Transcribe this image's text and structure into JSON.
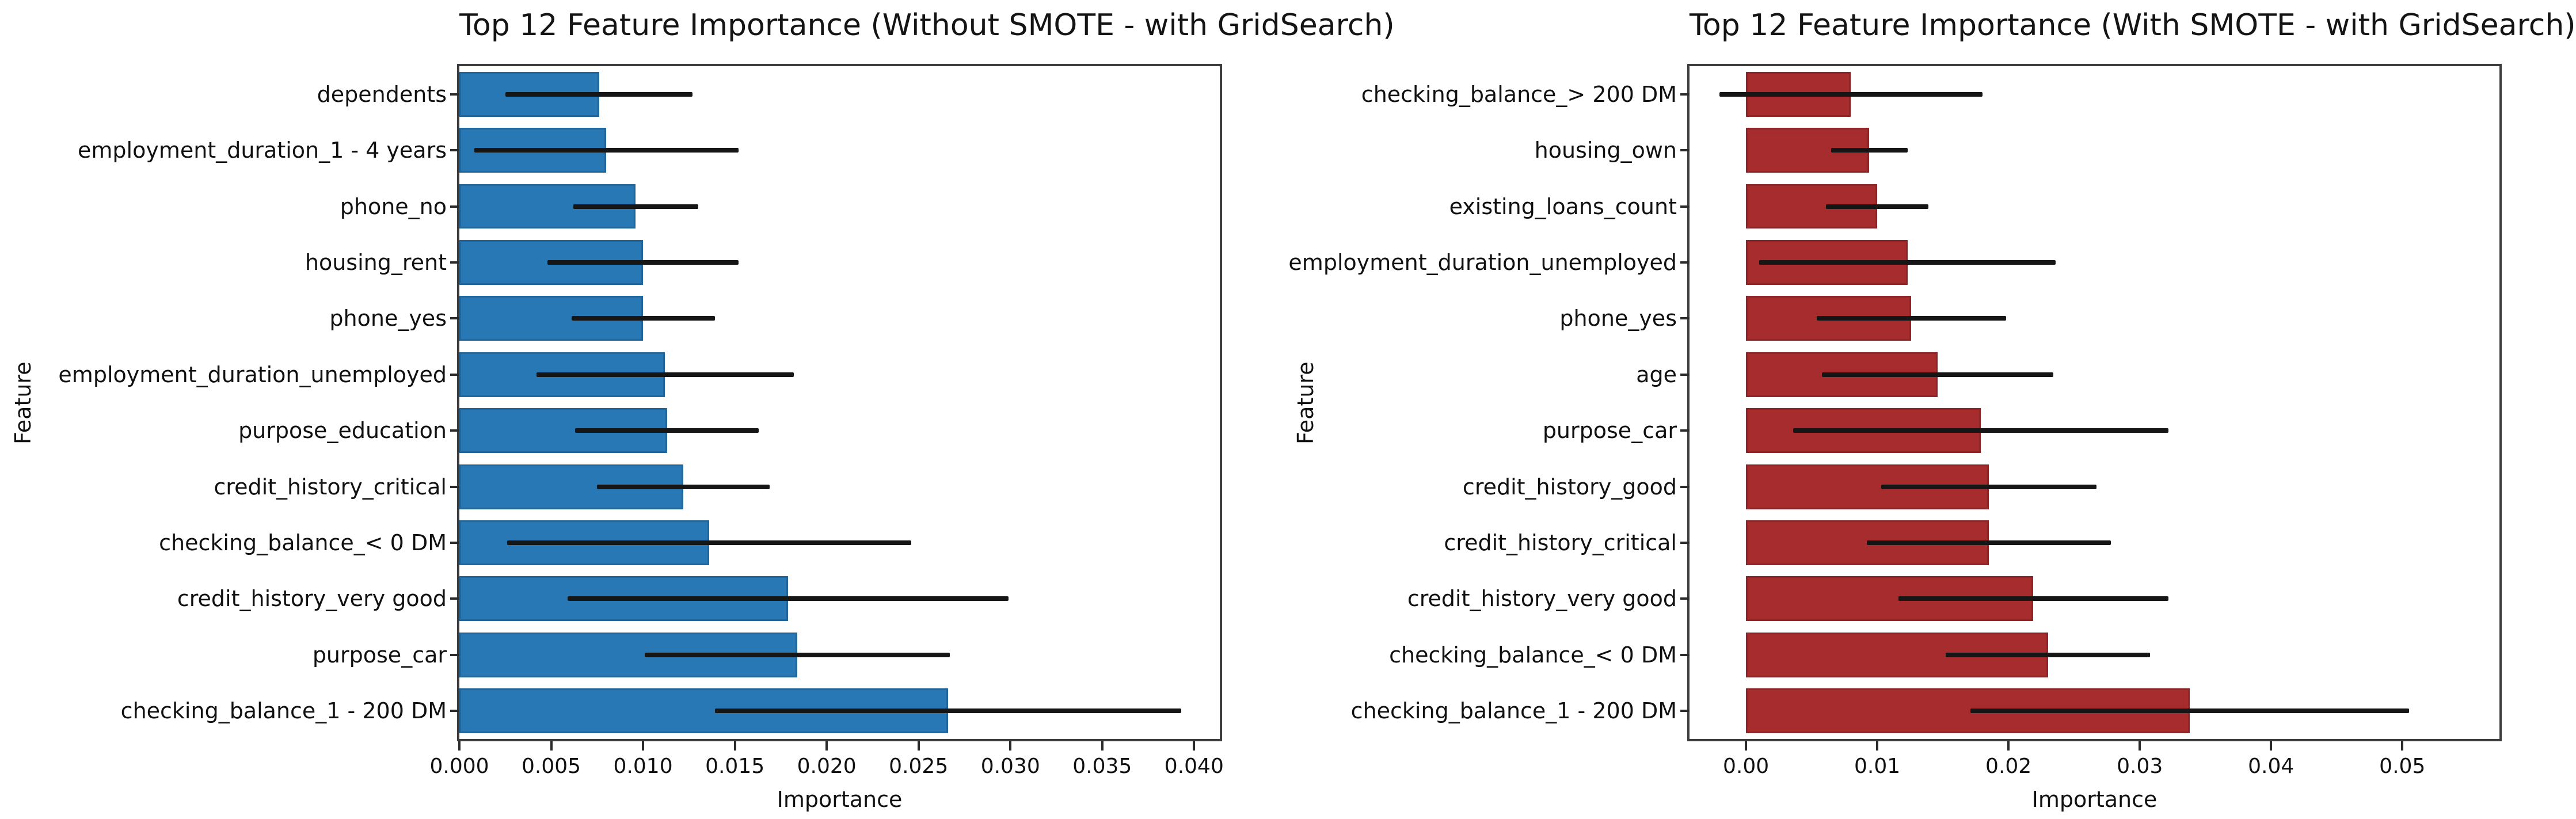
{
  "figure": {
    "background": "#ffffff",
    "text_color": "#111111",
    "spine_color": "#3d3d3d"
  },
  "chart_data": [
    {
      "type": "bar",
      "orientation": "horizontal",
      "title": "Top 12 Feature Importance (Without SMOTE - with GridSearch)",
      "xlabel": "Importance",
      "ylabel": "Feature",
      "bar_color": "#2878b5",
      "error_color": "#161616",
      "grid": false,
      "legend": null,
      "xlim": [
        0.0,
        0.0414
      ],
      "categories": [
        "dependents",
        "employment_duration_1 - 4 years",
        "phone_no",
        "housing_rent",
        "phone_yes",
        "employment_duration_unemployed",
        "purpose_education",
        "credit_history_critical",
        "checking_balance_< 0 DM",
        "credit_history_very good",
        "purpose_car",
        "checking_balance_1 - 200 DM"
      ],
      "values": [
        0.0076,
        0.008,
        0.0096,
        0.01,
        0.01,
        0.0112,
        0.0113,
        0.0122,
        0.0136,
        0.0179,
        0.0184,
        0.0266
      ],
      "errors": [
        0.0051,
        0.0072,
        0.0034,
        0.0052,
        0.0039,
        0.007,
        0.005,
        0.0047,
        0.011,
        0.012,
        0.0083,
        0.0127
      ],
      "xticks": [
        {
          "label": "0.000",
          "value": 0.0
        },
        {
          "label": "0.005",
          "value": 0.005
        },
        {
          "label": "0.010",
          "value": 0.01
        },
        {
          "label": "0.015",
          "value": 0.015
        },
        {
          "label": "0.020",
          "value": 0.02
        },
        {
          "label": "0.025",
          "value": 0.025
        },
        {
          "label": "0.030",
          "value": 0.03
        },
        {
          "label": "0.035",
          "value": 0.035
        },
        {
          "label": "0.040",
          "value": 0.04
        }
      ]
    },
    {
      "type": "bar",
      "orientation": "horizontal",
      "title": "Top 12 Feature Importance (With SMOTE - with GridSearch)",
      "xlabel": "Importance",
      "ylabel": "Feature",
      "bar_color": "#a62c2d",
      "error_color": "#161616",
      "grid": false,
      "legend": null,
      "xlim": [
        -0.0043,
        0.0574
      ],
      "categories": [
        "checking_balance_> 200 DM",
        "housing_own",
        "existing_loans_count",
        "employment_duration_unemployed",
        "phone_yes",
        "age",
        "purpose_car",
        "credit_history_good",
        "credit_history_critical",
        "credit_history_very good",
        "checking_balance_< 0 DM",
        "checking_balance_1 - 200 DM"
      ],
      "values": [
        0.008,
        0.0094,
        0.01,
        0.0123,
        0.0126,
        0.0146,
        0.0179,
        0.0185,
        0.0185,
        0.0219,
        0.023,
        0.0338
      ],
      "errors": [
        0.01,
        0.0029,
        0.0039,
        0.0113,
        0.0072,
        0.0088,
        0.0143,
        0.0082,
        0.0093,
        0.0103,
        0.0078,
        0.0167
      ],
      "xticks": [
        {
          "label": "0.00",
          "value": 0.0
        },
        {
          "label": "0.01",
          "value": 0.01
        },
        {
          "label": "0.02",
          "value": 0.02
        },
        {
          "label": "0.03",
          "value": 0.03
        },
        {
          "label": "0.04",
          "value": 0.04
        },
        {
          "label": "0.05",
          "value": 0.05
        }
      ]
    }
  ]
}
